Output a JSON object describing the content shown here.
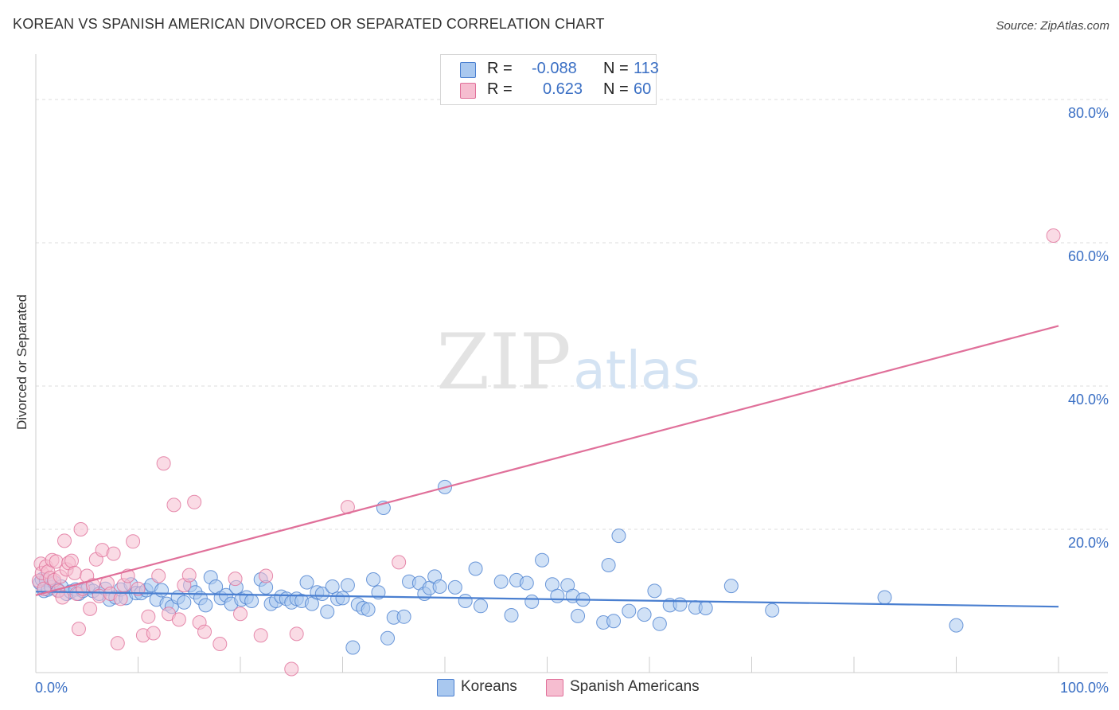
{
  "title": "KOREAN VS SPANISH AMERICAN DIVORCED OR SEPARATED CORRELATION CHART",
  "source": "Source: ZipAtlas.com",
  "watermark": {
    "zip": "ZIP",
    "atlas": "atlas"
  },
  "legend": {
    "r_label": "R =",
    "n_label": "N =",
    "rows": [
      {
        "r": "-0.088",
        "n": "113",
        "color": "#a9c8ef",
        "border": "#4a7fd0"
      },
      {
        "r": "0.623",
        "n": "60",
        "color": "#f6bdd0",
        "border": "#e0709a"
      }
    ]
  },
  "bottom_legend": [
    {
      "label": "Koreans",
      "color": "#a9c8ef",
      "border": "#4a7fd0"
    },
    {
      "label": "Spanish Americans",
      "color": "#f6bdd0",
      "border": "#e0709a"
    }
  ],
  "chart_data": {
    "type": "scatter",
    "title": "KOREAN VS SPANISH AMERICAN DIVORCED OR SEPARATED CORRELATION CHART",
    "xlabel": "",
    "ylabel": "Divorced or Separated",
    "xlim": [
      0,
      100
    ],
    "ylim": [
      0,
      85
    ],
    "x_tick_labels": [
      {
        "value": 0,
        "label": "0.0%"
      },
      {
        "value": 100,
        "label": "100.0%"
      }
    ],
    "y_tick_labels": [
      {
        "value": 20,
        "label": "20.0%"
      },
      {
        "value": 40,
        "label": "40.0%"
      },
      {
        "value": 60,
        "label": "60.0%"
      },
      {
        "value": 80,
        "label": "80.0%"
      }
    ],
    "grid": true,
    "legend_position": "top-center",
    "series": [
      {
        "name": "Koreans",
        "color": "#4a7fd0",
        "fill": "#a9c8ef",
        "trend": {
          "x": [
            0,
            100
          ],
          "y": [
            11.3,
            9.2
          ]
        },
        "points": [
          [
            0.4,
            12.5
          ],
          [
            0.6,
            13.0
          ],
          [
            0.8,
            11.4
          ],
          [
            1.0,
            12.9
          ],
          [
            1.2,
            11.6
          ],
          [
            1.5,
            11.9
          ],
          [
            1.8,
            12.6
          ],
          [
            2.2,
            11.5
          ],
          [
            2.5,
            12.0
          ],
          [
            3.0,
            11.0
          ],
          [
            3.4,
            11.3
          ],
          [
            3.9,
            11.6
          ],
          [
            4.2,
            11.0
          ],
          [
            4.6,
            11.4
          ],
          [
            5.1,
            11.8
          ],
          [
            5.6,
            11.4
          ],
          [
            6.2,
            11.0
          ],
          [
            6.8,
            11.7
          ],
          [
            7.2,
            10.2
          ],
          [
            7.8,
            10.5
          ],
          [
            8.3,
            11.6
          ],
          [
            8.8,
            10.4
          ],
          [
            9.3,
            12.3
          ],
          [
            9.8,
            11.1
          ],
          [
            10.3,
            11.1
          ],
          [
            10.8,
            11.5
          ],
          [
            11.3,
            12.2
          ],
          [
            11.8,
            10.2
          ],
          [
            12.3,
            11.5
          ],
          [
            12.8,
            9.6
          ],
          [
            13.3,
            9.2
          ],
          [
            13.9,
            10.5
          ],
          [
            14.5,
            9.8
          ],
          [
            15.1,
            12.2
          ],
          [
            15.6,
            11.2
          ],
          [
            16.1,
            10.4
          ],
          [
            16.6,
            9.4
          ],
          [
            17.1,
            13.3
          ],
          [
            17.6,
            12.0
          ],
          [
            18.1,
            10.4
          ],
          [
            18.6,
            10.8
          ],
          [
            19.1,
            9.6
          ],
          [
            19.6,
            11.9
          ],
          [
            20.1,
            10.2
          ],
          [
            20.6,
            10.5
          ],
          [
            21.1,
            10.0
          ],
          [
            22.0,
            13.0
          ],
          [
            22.5,
            11.9
          ],
          [
            23.0,
            9.6
          ],
          [
            23.5,
            10.0
          ],
          [
            24.0,
            10.6
          ],
          [
            24.5,
            10.3
          ],
          [
            25.0,
            9.8
          ],
          [
            25.5,
            10.3
          ],
          [
            26.0,
            10.0
          ],
          [
            26.5,
            12.6
          ],
          [
            27.0,
            9.6
          ],
          [
            27.5,
            11.2
          ],
          [
            28.0,
            11.0
          ],
          [
            28.5,
            8.5
          ],
          [
            29.0,
            12.0
          ],
          [
            29.5,
            10.3
          ],
          [
            30.0,
            10.4
          ],
          [
            30.5,
            12.2
          ],
          [
            31.0,
            3.5
          ],
          [
            31.5,
            9.5
          ],
          [
            32.0,
            9.0
          ],
          [
            32.5,
            8.8
          ],
          [
            33.0,
            13.0
          ],
          [
            33.5,
            11.2
          ],
          [
            34.0,
            23.0
          ],
          [
            34.4,
            4.8
          ],
          [
            35.0,
            7.7
          ],
          [
            36.0,
            7.8
          ],
          [
            36.5,
            12.7
          ],
          [
            37.5,
            12.5
          ],
          [
            38.0,
            11.0
          ],
          [
            38.5,
            11.8
          ],
          [
            39.0,
            13.4
          ],
          [
            39.5,
            12.0
          ],
          [
            40.0,
            25.9
          ],
          [
            41.0,
            11.9
          ],
          [
            42.0,
            10.0
          ],
          [
            43.0,
            14.5
          ],
          [
            43.5,
            9.3
          ],
          [
            45.5,
            12.7
          ],
          [
            46.5,
            8.0
          ],
          [
            47.0,
            12.9
          ],
          [
            48.0,
            12.5
          ],
          [
            48.5,
            9.9
          ],
          [
            49.5,
            15.7
          ],
          [
            50.5,
            12.3
          ],
          [
            51.0,
            10.7
          ],
          [
            52.0,
            12.2
          ],
          [
            52.5,
            10.7
          ],
          [
            53.0,
            7.9
          ],
          [
            53.5,
            10.2
          ],
          [
            55.5,
            7.0
          ],
          [
            56.0,
            15.0
          ],
          [
            56.5,
            7.2
          ],
          [
            57.0,
            19.1
          ],
          [
            58.0,
            8.6
          ],
          [
            59.5,
            8.1
          ],
          [
            60.5,
            11.4
          ],
          [
            61.0,
            6.8
          ],
          [
            62.0,
            9.4
          ],
          [
            63.0,
            9.5
          ],
          [
            64.5,
            9.1
          ],
          [
            65.5,
            9.0
          ],
          [
            68.0,
            12.1
          ],
          [
            72.0,
            8.7
          ],
          [
            83.0,
            10.5
          ],
          [
            90.0,
            6.6
          ]
        ]
      },
      {
        "name": "Spanish Americans",
        "color": "#e0709a",
        "fill": "#f6bdd0",
        "trend": {
          "x": [
            0,
            100
          ],
          "y": [
            10.8,
            48.4
          ]
        },
        "points": [
          [
            0.3,
            12.8
          ],
          [
            0.5,
            15.2
          ],
          [
            0.6,
            13.9
          ],
          [
            0.8,
            11.7
          ],
          [
            1.0,
            14.8
          ],
          [
            1.2,
            14.1
          ],
          [
            1.4,
            13.2
          ],
          [
            1.6,
            15.7
          ],
          [
            1.8,
            12.9
          ],
          [
            2.0,
            15.5
          ],
          [
            2.2,
            11.4
          ],
          [
            2.4,
            13.4
          ],
          [
            2.6,
            10.5
          ],
          [
            2.8,
            18.4
          ],
          [
            3.0,
            14.4
          ],
          [
            3.2,
            15.3
          ],
          [
            3.5,
            15.6
          ],
          [
            3.8,
            13.9
          ],
          [
            4.0,
            11.0
          ],
          [
            4.2,
            6.1
          ],
          [
            4.4,
            20.0
          ],
          [
            4.6,
            11.7
          ],
          [
            5.0,
            13.5
          ],
          [
            5.3,
            8.9
          ],
          [
            5.6,
            12.2
          ],
          [
            5.9,
            15.8
          ],
          [
            6.2,
            10.7
          ],
          [
            6.5,
            17.1
          ],
          [
            7.0,
            12.5
          ],
          [
            7.3,
            11.0
          ],
          [
            7.6,
            16.6
          ],
          [
            8.0,
            4.1
          ],
          [
            8.3,
            10.3
          ],
          [
            8.6,
            12.2
          ],
          [
            9.0,
            13.5
          ],
          [
            9.5,
            18.3
          ],
          [
            10.0,
            11.7
          ],
          [
            10.5,
            5.2
          ],
          [
            11.0,
            7.8
          ],
          [
            11.5,
            5.5
          ],
          [
            12.0,
            13.5
          ],
          [
            12.5,
            29.2
          ],
          [
            13.0,
            8.2
          ],
          [
            13.5,
            23.4
          ],
          [
            14.0,
            7.4
          ],
          [
            14.5,
            12.2
          ],
          [
            15.0,
            13.6
          ],
          [
            15.5,
            23.8
          ],
          [
            16.0,
            7.0
          ],
          [
            16.5,
            5.7
          ],
          [
            18.0,
            4.0
          ],
          [
            19.5,
            13.1
          ],
          [
            20.0,
            8.2
          ],
          [
            22.0,
            5.2
          ],
          [
            22.5,
            13.5
          ],
          [
            25.0,
            0.5
          ],
          [
            25.5,
            5.4
          ],
          [
            30.5,
            23.1
          ],
          [
            35.5,
            15.4
          ],
          [
            99.5,
            61.0
          ]
        ]
      }
    ]
  }
}
